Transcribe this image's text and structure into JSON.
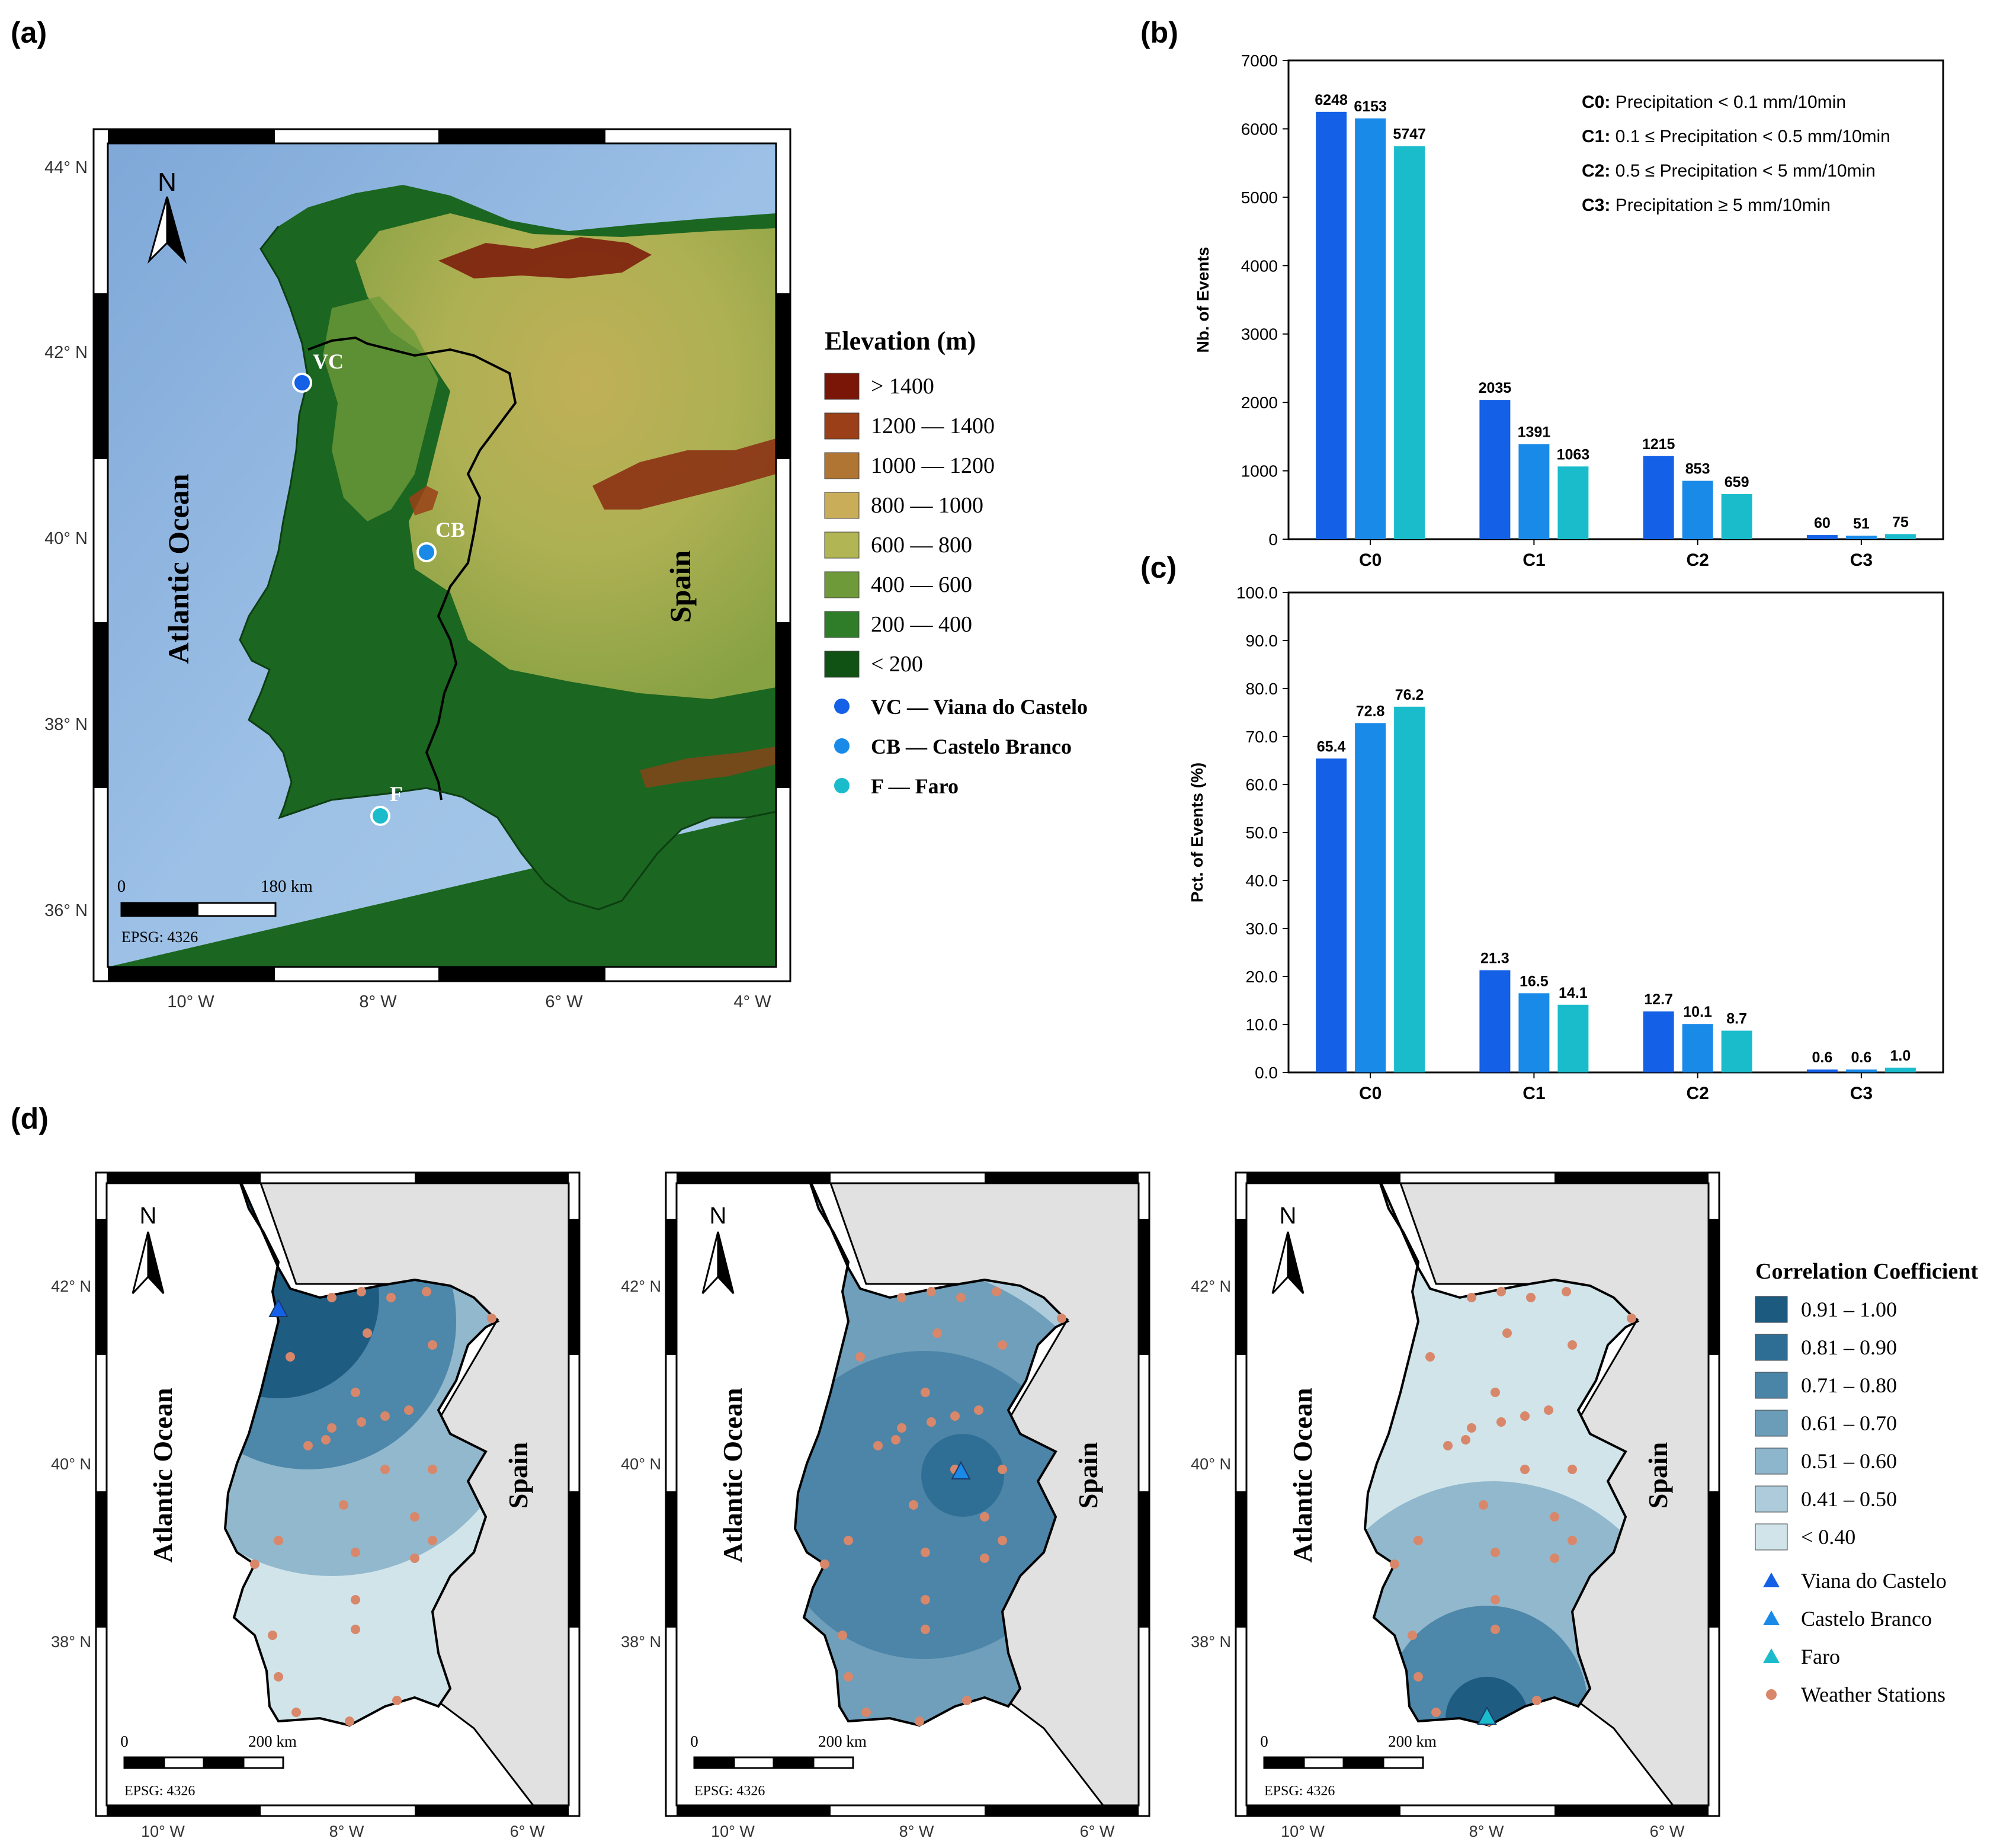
{
  "panels": {
    "a": {
      "label": "(a)",
      "lat_ticks": [
        "44° N",
        "42° N",
        "40° N",
        "38° N",
        "36° N"
      ],
      "lon_ticks": [
        "10° W",
        "8° W",
        "6° W",
        "4° W"
      ],
      "north": "N",
      "ocean_label": "Atlantic Ocean",
      "spain_label": "Spain",
      "stations": [
        {
          "code": "VC",
          "color": "#1460e6"
        },
        {
          "code": "CB",
          "color": "#1a8ae8"
        },
        {
          "code": "F",
          "color": "#1abccc"
        }
      ],
      "scale_start": "0",
      "scale_end": "180 km",
      "epsg": "EPSG: 4326",
      "legend": {
        "title": "Elevation (m)",
        "items": [
          {
            "label": "> 1400",
            "color": "#7a1608"
          },
          {
            "label": "1200 — 1400",
            "color": "#9a3f18"
          },
          {
            "label": "1000 — 1200",
            "color": "#b07532"
          },
          {
            "label": "800 — 1000",
            "color": "#c9ad58"
          },
          {
            "label": "600 — 800",
            "color": "#b1b554"
          },
          {
            "label": "400 — 600",
            "color": "#6e9a3a"
          },
          {
            "label": "200 — 400",
            "color": "#2f7d28"
          },
          {
            "label": "< 200",
            "color": "#105214"
          }
        ],
        "stations": [
          {
            "label": "VC — Viana do Castelo",
            "color": "#1460e6"
          },
          {
            "label": "CB — Castelo Branco",
            "color": "#1a8ae8"
          },
          {
            "label": "F — Faro",
            "color": "#1abccc"
          }
        ]
      }
    },
    "b": {
      "label": "(b)"
    },
    "c": {
      "label": "(c)"
    },
    "d": {
      "label": "(d)",
      "lat_ticks": [
        "42° N",
        "40° N",
        "38° N"
      ],
      "lon_ticks": [
        "10° W",
        "8° W",
        "6° W"
      ],
      "north": "N",
      "ocean_label": "Atlantic Ocean",
      "spain_label": "Spain",
      "scale_start": "0",
      "scale_end": "200 km",
      "epsg": "EPSG: 4326",
      "maps": [
        {
          "station": "Viana do Castelo",
          "marker_color": "#1460e6"
        },
        {
          "station": "Castelo Branco",
          "marker_color": "#1a8ae8"
        },
        {
          "station": "Faro",
          "marker_color": "#1abccc"
        }
      ],
      "legend": {
        "title": "Correlation Coefficient",
        "items": [
          {
            "label": "0.91 – 1.00",
            "color": "#1c5a80"
          },
          {
            "label": "0.81 – 0.90",
            "color": "#2e6e94"
          },
          {
            "label": "0.71 – 0.80",
            "color": "#4a84a6"
          },
          {
            "label": "0.61  – 0.70",
            "color": "#6b9cb8"
          },
          {
            "label": "0.51 – 0.60",
            "color": "#8db5cb"
          },
          {
            "label": "0.41 – 0.50",
            "color": "#adcbda"
          },
          {
            "label": "< 0.40",
            "color": "#d0e4ea"
          }
        ],
        "markers": [
          {
            "label": "Viana do Castelo",
            "color": "#1460e6"
          },
          {
            "label": "Castelo Branco",
            "color": "#1a8ae8"
          },
          {
            "label": "Faro",
            "color": "#1abccc"
          }
        ],
        "weather_stations": {
          "label": "Weather Stations",
          "color": "#d9876a"
        }
      }
    }
  },
  "chart_data": [
    {
      "id": "b",
      "type": "bar",
      "categories": [
        "C0",
        "C1",
        "C2",
        "C3"
      ],
      "series": [
        {
          "name": "Viana do Castelo",
          "color": "#1460e6",
          "values": [
            6248,
            2035,
            1215,
            60
          ],
          "labels": [
            "6248",
            "2035",
            "1215",
            "60"
          ]
        },
        {
          "name": "Castelo Branco",
          "color": "#1a8ae8",
          "values": [
            6153,
            1391,
            853,
            51
          ],
          "labels": [
            "6153",
            "1391",
            "853",
            "51"
          ]
        },
        {
          "name": "Faro",
          "color": "#1abccc",
          "values": [
            5747,
            1063,
            659,
            75
          ],
          "labels": [
            "5747",
            "1063",
            "659",
            "75"
          ]
        }
      ],
      "ylabel": "Nb. of Events",
      "ylim": [
        0,
        7000
      ],
      "yticks": [
        "0",
        "1000",
        "2000",
        "3000",
        "4000",
        "5000",
        "6000",
        "7000"
      ],
      "annotations": [
        {
          "bold": "C0:",
          "text": " Precipitation < 0.1 mm/10min"
        },
        {
          "bold": "C1:",
          "text": " 0.1 ≤ Precipitation < 0.5 mm/10min"
        },
        {
          "bold": "C2:",
          "text": " 0.5 ≤ Precipitation < 5 mm/10min"
        },
        {
          "bold": "C3:",
          "text": " Precipitation ≥ 5 mm/10min"
        }
      ]
    },
    {
      "id": "c",
      "type": "bar",
      "categories": [
        "C0",
        "C1",
        "C2",
        "C3"
      ],
      "series": [
        {
          "name": "Viana do Castelo",
          "color": "#1460e6",
          "values": [
            65.4,
            21.3,
            12.7,
            0.6
          ],
          "labels": [
            "65.4",
            "21.3",
            "12.7",
            "0.6"
          ]
        },
        {
          "name": "Castelo Branco",
          "color": "#1a8ae8",
          "values": [
            72.8,
            16.5,
            10.1,
            0.6
          ],
          "labels": [
            "72.8",
            "16.5",
            "10.1",
            "0.6"
          ]
        },
        {
          "name": "Faro",
          "color": "#1abccc",
          "values": [
            76.2,
            14.1,
            8.7,
            1.0
          ],
          "labels": [
            "76.2",
            "14.1",
            "8.7",
            "1.0"
          ]
        }
      ],
      "ylabel": "Pct. of Events (%)",
      "ylim": [
        0,
        100
      ],
      "yticks": [
        "0.0",
        "10.0",
        "20.0",
        "30.0",
        "40.0",
        "50.0",
        "60.0",
        "70.0",
        "80.0",
        "90.0",
        "100.0"
      ]
    }
  ]
}
